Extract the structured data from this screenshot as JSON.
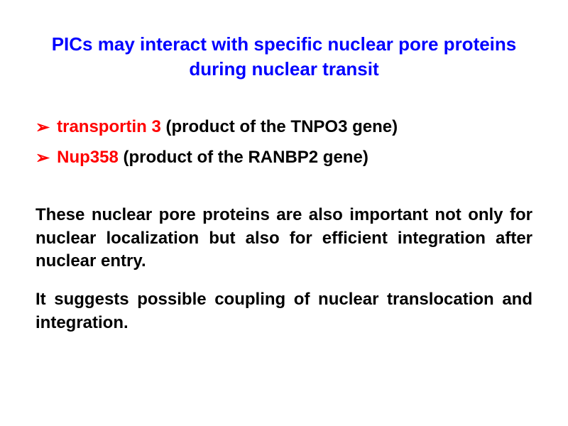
{
  "slide": {
    "title": "PICs may interact with specific nuclear pore proteins during nuclear transit",
    "bullets": [
      {
        "highlight": "transportin 3",
        "rest": " (product of the TNPO3 gene)"
      },
      {
        "highlight": "Nup358",
        "rest": " (product of the RANBP2 gene)"
      }
    ],
    "paragraphs": [
      "These nuclear pore proteins are also important not only for nuclear localization but also for efficient integration after nuclear entry.",
      " It suggests possible coupling of nuclear translocation and integration."
    ],
    "colors": {
      "title": "#0000ff",
      "bullet_marker": "#ff0000",
      "highlight": "#ff0000",
      "body_text": "#000000",
      "background": "#ffffff"
    },
    "typography": {
      "title_fontsize": 26,
      "body_fontsize": 24,
      "font_weight": "bold",
      "font_family": "Arial"
    },
    "bullet_glyph": "➢"
  }
}
